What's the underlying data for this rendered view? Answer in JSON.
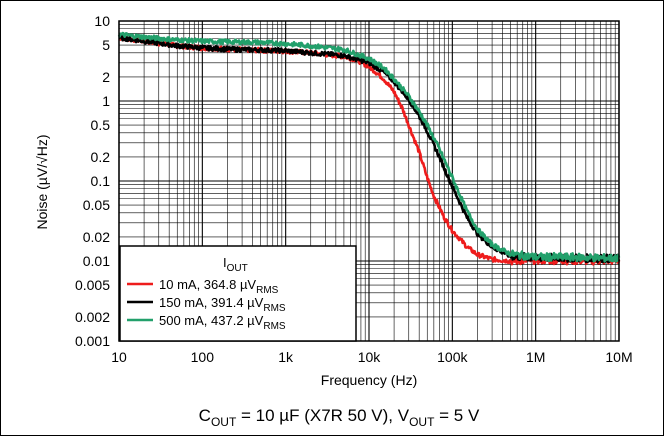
{
  "chart_data": {
    "type": "line",
    "xscale": "log",
    "yscale": "log",
    "xlim": [
      10,
      10000000
    ],
    "ylim": [
      0.001,
      10
    ],
    "grid": true,
    "xlabel": "Frequency (Hz)",
    "ylabel": "Noise (µV/√Hz)",
    "xticks": [
      "10",
      "100",
      "1k",
      "10k",
      "100k",
      "1M",
      "10M"
    ],
    "yticks": [
      "0.001",
      "0.002",
      "0.005",
      "0.01",
      "0.02",
      "0.05",
      "0.1",
      "0.2",
      "0.5",
      "1",
      "2",
      "5",
      "10"
    ],
    "legend": {
      "title": "I",
      "title_sub": "OUT",
      "placement": "bottom-left",
      "entries": [
        {
          "text": "10 mA, 364.8 µV",
          "sub": "RMS"
        },
        {
          "text": "150 mA, 391.4 µV",
          "sub": "RMS"
        },
        {
          "text": "500 mA, 437.2 µV",
          "sub": "RMS"
        }
      ]
    },
    "series": [
      {
        "name": "10 mA, 364.8 µVRMS",
        "color": "#ee1c1c",
        "x": [
          10,
          20,
          50,
          100,
          200,
          500,
          1000,
          2000,
          5000,
          7000,
          10000,
          15000,
          20000,
          25000,
          30000,
          40000,
          50000,
          60000,
          80000,
          100000,
          150000,
          200000,
          300000,
          500000,
          1000000,
          2000000,
          5000000,
          10000000
        ],
        "y": [
          6.2,
          5.6,
          4.9,
          4.6,
          4.45,
          4.3,
          4.2,
          4.0,
          3.6,
          3.3,
          2.7,
          1.9,
          1.3,
          0.82,
          0.5,
          0.23,
          0.11,
          0.065,
          0.035,
          0.024,
          0.015,
          0.012,
          0.0105,
          0.01,
          0.0103,
          0.0102,
          0.0101,
          0.0102
        ]
      },
      {
        "name": "150 mA, 391.4 µVRMS",
        "color": "#000000",
        "x": [
          10,
          20,
          50,
          100,
          200,
          500,
          1000,
          2000,
          5000,
          10000,
          15000,
          20000,
          30000,
          40000,
          50000,
          70000,
          100000,
          150000,
          200000,
          300000,
          500000,
          1000000,
          2000000,
          5000000,
          10000000
        ],
        "y": [
          6.2,
          5.6,
          4.9,
          4.6,
          4.45,
          4.35,
          4.25,
          4.0,
          3.7,
          3.0,
          2.3,
          1.75,
          1.05,
          0.65,
          0.42,
          0.2,
          0.085,
          0.035,
          0.022,
          0.015,
          0.0115,
          0.011,
          0.011,
          0.0108,
          0.0107
        ]
      },
      {
        "name": "500 mA, 437.2 µVRMS",
        "color": "#22a06b",
        "x": [
          10,
          20,
          50,
          100,
          200,
          500,
          1000,
          2000,
          5000,
          10000,
          15000,
          20000,
          30000,
          40000,
          50000,
          70000,
          100000,
          150000,
          200000,
          300000,
          500000,
          1000000,
          2000000,
          5000000,
          10000000
        ],
        "y": [
          6.8,
          6.3,
          5.8,
          5.6,
          5.5,
          5.4,
          5.2,
          4.9,
          4.4,
          3.4,
          2.6,
          1.9,
          1.15,
          0.74,
          0.5,
          0.25,
          0.11,
          0.042,
          0.025,
          0.016,
          0.0122,
          0.0112,
          0.0112,
          0.011,
          0.0108
        ]
      }
    ]
  },
  "caption": {
    "parts": [
      {
        "t": "C",
        "sub": false
      },
      {
        "t": "OUT",
        "sub": true
      },
      {
        "t": " = 10 µF (X7R 50 V), V",
        "sub": false
      },
      {
        "t": "OUT",
        "sub": true
      },
      {
        "t": " = 5 V",
        "sub": false
      }
    ]
  }
}
